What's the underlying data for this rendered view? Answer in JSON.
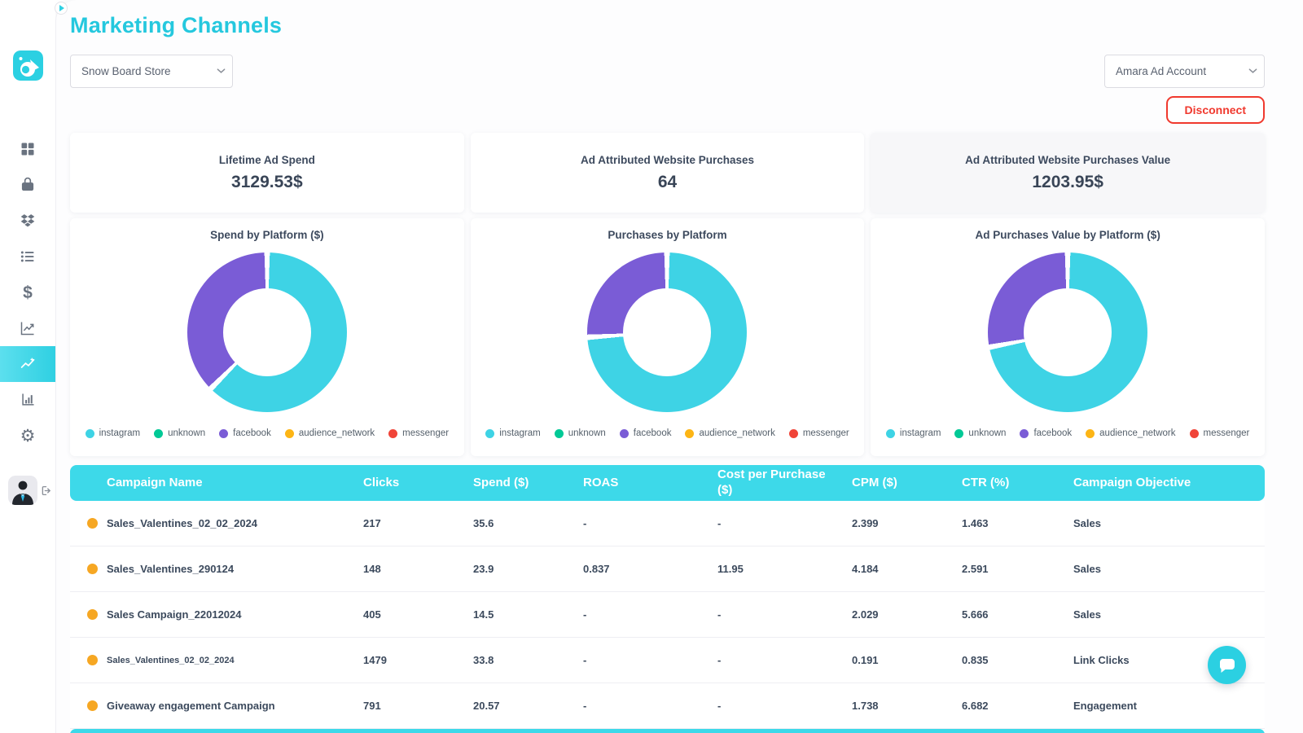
{
  "colors": {
    "accent": "#25c8de",
    "table_header": "#3dd9e9",
    "donut_cyan": "#3ed3e5",
    "donut_purple": "#7a5cd6",
    "legend_green": "#00c996",
    "legend_amber": "#fdb515",
    "legend_red": "#f04438",
    "danger": "#f0392e",
    "text_dark": "#3d4a5e",
    "row_dot_orange": "#f6a723"
  },
  "sidebar": {
    "logo_icon": "brand-logo",
    "collapse_icon": "chevron-right-icon",
    "items": [
      {
        "icon": "dashboard-grid-icon",
        "active": false
      },
      {
        "icon": "shopping-bag-icon",
        "active": false
      },
      {
        "icon": "dropbox-icon",
        "active": false
      },
      {
        "icon": "list-icon",
        "active": false
      },
      {
        "icon": "dollar-icon",
        "active": false,
        "glyph": "$"
      },
      {
        "icon": "line-chart-icon",
        "active": false
      },
      {
        "icon": "marketing-sparkline-icon",
        "active": true
      },
      {
        "icon": "bar-chart-icon",
        "active": false
      },
      {
        "icon": "gear-icon",
        "active": false,
        "glyph": "⚙"
      }
    ],
    "avatar": "user-avatar",
    "logout_icon": "logout-icon"
  },
  "header": {
    "title": "Marketing Channels",
    "store_selector": "Snow Board Store",
    "account_selector": "Amara Ad Account",
    "disconnect_label": "Disconnect"
  },
  "kpis": [
    {
      "label": "Lifetime Ad Spend",
      "value": "3129.53$"
    },
    {
      "label": "Ad Attributed Website Purchases",
      "value": "64"
    },
    {
      "label": "Ad Attributed Website Purchases Value",
      "value": "1203.95$"
    }
  ],
  "chart_data": [
    {
      "type": "pie",
      "title": "Spend by Platform ($)",
      "labels": [
        "instagram",
        "unknown",
        "facebook",
        "audience_network",
        "messenger"
      ],
      "colors": [
        "#3ed3e5",
        "#00c996",
        "#7a5cd6",
        "#fdb515",
        "#f04438"
      ],
      "percents": [
        62.5,
        0,
        37.5,
        0,
        0
      ],
      "donut_hole": 0.55,
      "legend_position": "bottom"
    },
    {
      "type": "pie",
      "title": "Purchases by Platform",
      "labels": [
        "instagram",
        "unknown",
        "facebook",
        "audience_network",
        "messenger"
      ],
      "colors": [
        "#3ed3e5",
        "#00c996",
        "#7a5cd6",
        "#fdb515",
        "#f04438"
      ],
      "percents": [
        74,
        0,
        26,
        0,
        0
      ],
      "donut_hole": 0.55,
      "legend_position": "bottom"
    },
    {
      "type": "pie",
      "title": "Ad Purchases Value by Platform ($)",
      "labels": [
        "instagram",
        "unknown",
        "facebook",
        "audience_network",
        "messenger"
      ],
      "colors": [
        "#3ed3e5",
        "#00c996",
        "#7a5cd6",
        "#fdb515",
        "#f04438"
      ],
      "percents": [
        72,
        0,
        28,
        0,
        0
      ],
      "donut_hole": 0.55,
      "legend_position": "bottom"
    }
  ],
  "table": {
    "columns": [
      "Campaign Name",
      "Clicks",
      "Spend ($)",
      "ROAS",
      "Cost per Purchase ($)",
      "CPM ($)",
      "CTR (%)",
      "Campaign Objective"
    ],
    "rows": [
      [
        "Sales_Valentines_02_02_2024",
        "217",
        "35.6",
        "-",
        "-",
        "2.399",
        "1.463",
        "Sales"
      ],
      [
        "Sales_Valentines_290124",
        "148",
        "23.9",
        "0.837",
        "11.95",
        "4.184",
        "2.591",
        "Sales"
      ],
      [
        "Sales Campaign_22012024",
        "405",
        "14.5",
        "-",
        "-",
        "2.029",
        "5.666",
        "Sales"
      ],
      [
        "Sales_Valentines_02_02_2024",
        "1479",
        "33.8",
        "-",
        "-",
        "0.191",
        "0.835",
        "Link Clicks"
      ],
      [
        "Giveaway engagement Campaign",
        "791",
        "20.57",
        "-",
        "-",
        "1.738",
        "6.682",
        "Engagement"
      ]
    ]
  },
  "chat": {
    "icon": "chat-bubble-icon"
  }
}
